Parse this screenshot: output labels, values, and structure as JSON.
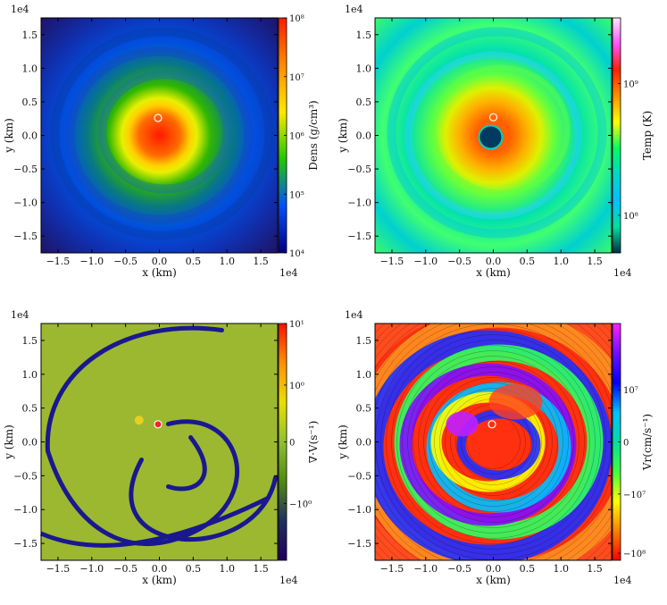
{
  "chart_data": [
    {
      "type": "heatmap",
      "panel": "top-left",
      "scale_note": "1e4",
      "xlabel": "x  (km)",
      "ylabel": "y  (km)",
      "xticks": [
        "−1.5",
        "−1.0",
        "−0.5",
        "0.0",
        "0.5",
        "1.0",
        "1.5"
      ],
      "yticks": [
        "1.5",
        "1.0",
        "0.5",
        "0.0",
        "−0.5",
        "−1.0",
        "−1.5"
      ],
      "xlim": [
        -1.75,
        1.75
      ],
      "ylim": [
        -1.75,
        1.75
      ],
      "colorbar": {
        "label": "Dens  (g/cm³)",
        "ticks": [
          "10⁸",
          "10⁷",
          "10⁶",
          "10⁵",
          "10⁴"
        ],
        "tick_values": [
          8,
          7,
          6,
          5,
          4
        ],
        "range": [
          4,
          8
        ],
        "colors": [
          "#ff1a00",
          "#ff8a00",
          "#ffe800",
          "#20c800",
          "#0050ff",
          "#000080"
        ]
      },
      "marker": {
        "x": -0.02,
        "y": 0.26,
        "color": "#ffffff"
      }
    },
    {
      "type": "heatmap",
      "panel": "top-right",
      "scale_note": "1e4",
      "xlabel": "x  (km)",
      "ylabel": "y  (km)",
      "xticks": [
        "−1.5",
        "−1.0",
        "−0.5",
        "0.0",
        "0.5",
        "1.0",
        "1.5"
      ],
      "yticks": [
        "1.5",
        "1.0",
        "0.5",
        "0.0",
        "−0.5",
        "−1.0",
        "−1.5"
      ],
      "xlim": [
        -1.75,
        1.75
      ],
      "ylim": [
        -1.75,
        1.75
      ],
      "colorbar": {
        "label": "Temp  (K)",
        "ticks": [
          "10⁹",
          "10⁸"
        ],
        "tick_positions": [
          0.28,
          0.84
        ],
        "colors": [
          "#ffeaff",
          "#ff50ff",
          "#ff2000",
          "#ff9000",
          "#ffff00",
          "#00ff60",
          "#00d8c8",
          "#00c0ff",
          "#00e0a0",
          "#003040"
        ]
      },
      "marker": {
        "x": 0.0,
        "y": 0.27,
        "color": "#ffffff"
      }
    },
    {
      "type": "heatmap",
      "panel": "bottom-left",
      "scale_note": "1e4",
      "xlabel": "x  (km)",
      "ylabel": "y  (km)",
      "xticks": [
        "−1.5",
        "−1.0",
        "−0.5",
        "0.0",
        "0.5",
        "1.0",
        "1.5"
      ],
      "yticks": [
        "1.5",
        "1.0",
        "0.5",
        "0.0",
        "−0.5",
        "−1.0",
        "−1.5"
      ],
      "xlim": [
        -1.75,
        1.75
      ],
      "ylim": [
        -1.75,
        1.75
      ],
      "colorbar": {
        "label": "∇·V(s⁻¹)",
        "ticks": [
          "10¹",
          "10⁰",
          "0",
          "−10⁰"
        ],
        "tick_positions": [
          0.0,
          0.26,
          0.5,
          0.76
        ],
        "colors": [
          "#ff1000",
          "#ff9000",
          "#e8e000",
          "#90c030",
          "#508a10",
          "#203060",
          "#200060"
        ]
      },
      "marker": {
        "x": -0.02,
        "y": 0.26,
        "color": "#ff2020"
      }
    },
    {
      "type": "heatmap",
      "panel": "bottom-right",
      "scale_note": "1e4",
      "xlabel": "x  (km)",
      "ylabel": "y  (km)",
      "xticks": [
        "−1.5",
        "−1.0",
        "−0.5",
        "0.0",
        "0.5",
        "1.0",
        "1.5"
      ],
      "yticks": [
        "1.5",
        "1.0",
        "0.5",
        "0.0",
        "−0.5",
        "−1.0",
        "−1.5"
      ],
      "xlim": [
        -1.75,
        1.75
      ],
      "ylim": [
        -1.75,
        1.75
      ],
      "colorbar": {
        "label": "Vr(cm/s⁻¹)",
        "ticks": [
          "10⁷",
          "0",
          "−10⁷",
          "−10⁸"
        ],
        "tick_positions": [
          0.28,
          0.5,
          0.72,
          0.97
        ],
        "colors": [
          "#ff20ff",
          "#7010ff",
          "#0000ff",
          "#00c0ff",
          "#00e0a0",
          "#40ff40",
          "#ffff00",
          "#ff8000",
          "#ff0000"
        ]
      },
      "marker": {
        "x": -0.02,
        "y": 0.26,
        "color": "#ffffff"
      }
    }
  ]
}
